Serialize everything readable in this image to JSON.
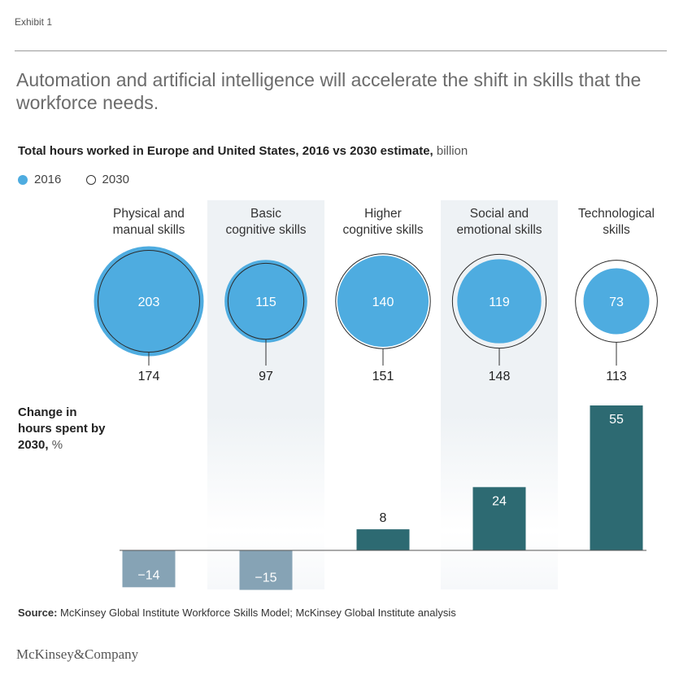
{
  "exhibit": "Exhibit 1",
  "headline": "Automation and artificial intelligence will accelerate the shift in skills that the workforce needs.",
  "subtitle": {
    "bold": "Total hours worked in Europe and United States, 2016 vs 2030 estimate,",
    "unit": " billion"
  },
  "legend": [
    {
      "label": "2016",
      "style": "filled"
    },
    {
      "label": "2030",
      "style": "outline"
    }
  ],
  "change_label": {
    "bold": "Change in hours spent by 2030,",
    "unit": " %"
  },
  "source": {
    "bold": "Source:",
    "text": " McKinsey Global Institute Workforce Skills Model; McKinsey Global Institute analysis"
  },
  "brand": "McKinsey&Company",
  "colors": {
    "circle_2016": "#4eace0",
    "circle_2016_stroke": "#4eace0",
    "outline_2030": "#2b2b2b",
    "bar_positive": "#2d6a72",
    "bar_negative": "#86a3b5",
    "band_shade": "#eef2f5"
  },
  "chart_data": {
    "type": "bar",
    "categories": [
      [
        "Physical and",
        "manual skills"
      ],
      [
        "Basic",
        "cognitive skills"
      ],
      [
        "Higher",
        "cognitive skills"
      ],
      [
        "Social and",
        "emotional skills"
      ],
      [
        "Technological",
        "skills"
      ]
    ],
    "hours_2016": [
      203,
      115,
      140,
      119,
      73
    ],
    "hours_2030": [
      174,
      97,
      151,
      148,
      113
    ],
    "change_pct": [
      -14,
      -15,
      8,
      24,
      55
    ],
    "shaded_categories": [
      1,
      3
    ]
  }
}
